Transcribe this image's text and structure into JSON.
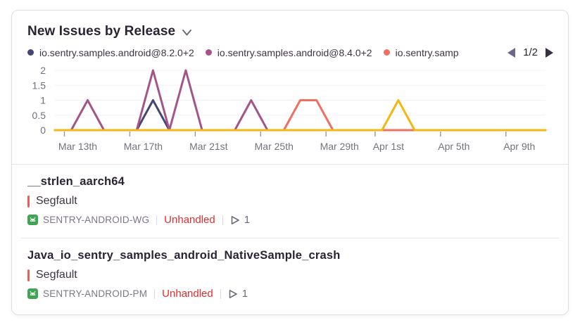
{
  "card": {
    "title": "New Issues by Release",
    "pagination": "1/2"
  },
  "legend": {
    "items": [
      {
        "label": "io.sentry.samples.android@8.2.0+2",
        "color": "#444674"
      },
      {
        "label": "io.sentry.samples.android@8.4.0+2",
        "color": "#a35488"
      },
      {
        "label": "io.sentry.samp",
        "color": "#ef7061"
      }
    ]
  },
  "chart_data": {
    "type": "line",
    "title": "New Issues by Release",
    "xlabel": "",
    "ylabel": "",
    "ylim": [
      0,
      2
    ],
    "yticks": [
      "0",
      "0.5",
      "1",
      "1.5",
      "2"
    ],
    "grid": true,
    "legend_position": "top",
    "x": [
      "Mar 11",
      "Mar 12",
      "Mar 13",
      "Mar 14",
      "Mar 15",
      "Mar 16",
      "Mar 17",
      "Mar 18",
      "Mar 19",
      "Mar 20",
      "Mar 21",
      "Mar 22",
      "Mar 23",
      "Mar 24",
      "Mar 25",
      "Mar 26",
      "Mar 27",
      "Mar 28",
      "Mar 29",
      "Mar 30",
      "Mar 31",
      "Apr 1",
      "Apr 2",
      "Apr 3",
      "Apr 4",
      "Apr 5",
      "Apr 6",
      "Apr 7",
      "Apr 8",
      "Apr 9",
      "Apr 10"
    ],
    "x_axis_labels": [
      {
        "label": "Mar 13th",
        "index": 2
      },
      {
        "label": "Mar 17th",
        "index": 6
      },
      {
        "label": "Mar 21st",
        "index": 10
      },
      {
        "label": "Mar 25th",
        "index": 14
      },
      {
        "label": "Mar 29th",
        "index": 18
      },
      {
        "label": "Apr 1st",
        "index": 21
      },
      {
        "label": "Apr 5th",
        "index": 25
      },
      {
        "label": "Apr 9th",
        "index": 29
      }
    ],
    "series": [
      {
        "name": "io.sentry.samples.android@8.2.0+2",
        "color": "#444674",
        "values": [
          0,
          0,
          0,
          0,
          0,
          0,
          1,
          0,
          0,
          0,
          0,
          0,
          0,
          0,
          0,
          0,
          0,
          0,
          0,
          0,
          0,
          0,
          0,
          0,
          0,
          0,
          0,
          0,
          0,
          0,
          0
        ]
      },
      {
        "name": "io.sentry.samples.android@8.4.0+2",
        "color": "#a35488",
        "values": [
          0,
          0,
          1,
          0,
          0,
          0,
          2,
          0,
          2,
          0,
          0,
          0,
          1,
          0,
          0,
          0,
          0,
          0,
          0,
          0,
          0,
          0,
          0,
          0,
          0,
          0,
          0,
          0,
          0,
          0,
          0
        ]
      },
      {
        "name": "io.sentry.samp",
        "color": "#ef7061",
        "values": [
          0,
          0,
          0,
          0,
          0,
          0,
          0,
          0,
          0,
          0,
          0,
          0,
          0,
          0,
          0,
          1,
          1,
          0,
          0,
          0,
          0,
          0,
          0,
          0,
          0,
          0,
          0,
          0,
          0,
          0,
          0
        ]
      },
      {
        "name": "",
        "color": "#f2b712",
        "values": [
          0,
          0,
          0,
          0,
          0,
          0,
          0,
          0,
          0,
          0,
          0,
          0,
          0,
          0,
          0,
          0,
          0,
          0,
          0,
          0,
          0,
          1,
          0,
          0,
          0,
          0,
          0,
          0,
          0,
          0,
          0
        ]
      }
    ]
  },
  "issues": [
    {
      "title": "__strlen_aarch64",
      "type": "Segfault",
      "project": "SENTRY-ANDROID-WG",
      "status": "Unhandled",
      "events": "1"
    },
    {
      "title": "Java_io_sentry_samples_android_NativeSample_crash",
      "type": "Segfault",
      "project": "SENTRY-ANDROID-PM",
      "status": "Unhandled",
      "events": "1"
    }
  ],
  "colors": {
    "unhandled_text": "#e12d2d",
    "error_level_bar": "#f25b52",
    "android_green": "#3fa553",
    "axis_text": "#766f80",
    "title_text": "#2b2233"
  },
  "icons": {
    "title_caret": "chevron-down",
    "legend_prev": "triangle-left",
    "legend_next": "triangle-right",
    "project_platform": "android",
    "events": "play-outline"
  }
}
